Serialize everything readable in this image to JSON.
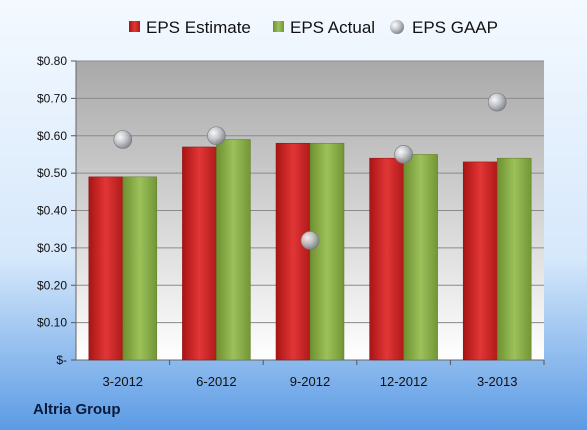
{
  "footer": {
    "company": "Altria Group"
  },
  "colors": {
    "estimate": "#d42a2a",
    "actual": "#8cb04a",
    "gaap": "#b8bcc4",
    "background_top": "#eef6ff",
    "background_bottom": "#5b9be4"
  },
  "chart_data": {
    "type": "bar",
    "title": "",
    "xlabel": "",
    "ylabel": "",
    "categories": [
      "3-2012",
      "6-2012",
      "9-2012",
      "12-2012",
      "3-2013"
    ],
    "series": [
      {
        "name": "EPS Estimate",
        "kind": "bar",
        "values": [
          0.49,
          0.57,
          0.58,
          0.54,
          0.53
        ]
      },
      {
        "name": "EPS Actual",
        "kind": "bar",
        "values": [
          0.49,
          0.59,
          0.58,
          0.55,
          0.54
        ]
      },
      {
        "name": "EPS GAAP",
        "kind": "marker",
        "values": [
          0.59,
          0.6,
          0.32,
          0.55,
          0.69
        ]
      }
    ],
    "ylim": [
      0,
      0.8
    ],
    "yticks": [
      0,
      0.1,
      0.2,
      0.3,
      0.4,
      0.5,
      0.6,
      0.7,
      0.8
    ],
    "ytick_labels": [
      "$-",
      "$0.10",
      "$0.20",
      "$0.30",
      "$0.40",
      "$0.50",
      "$0.60",
      "$0.70",
      "$0.80"
    ],
    "grid": true,
    "legend": "top"
  }
}
